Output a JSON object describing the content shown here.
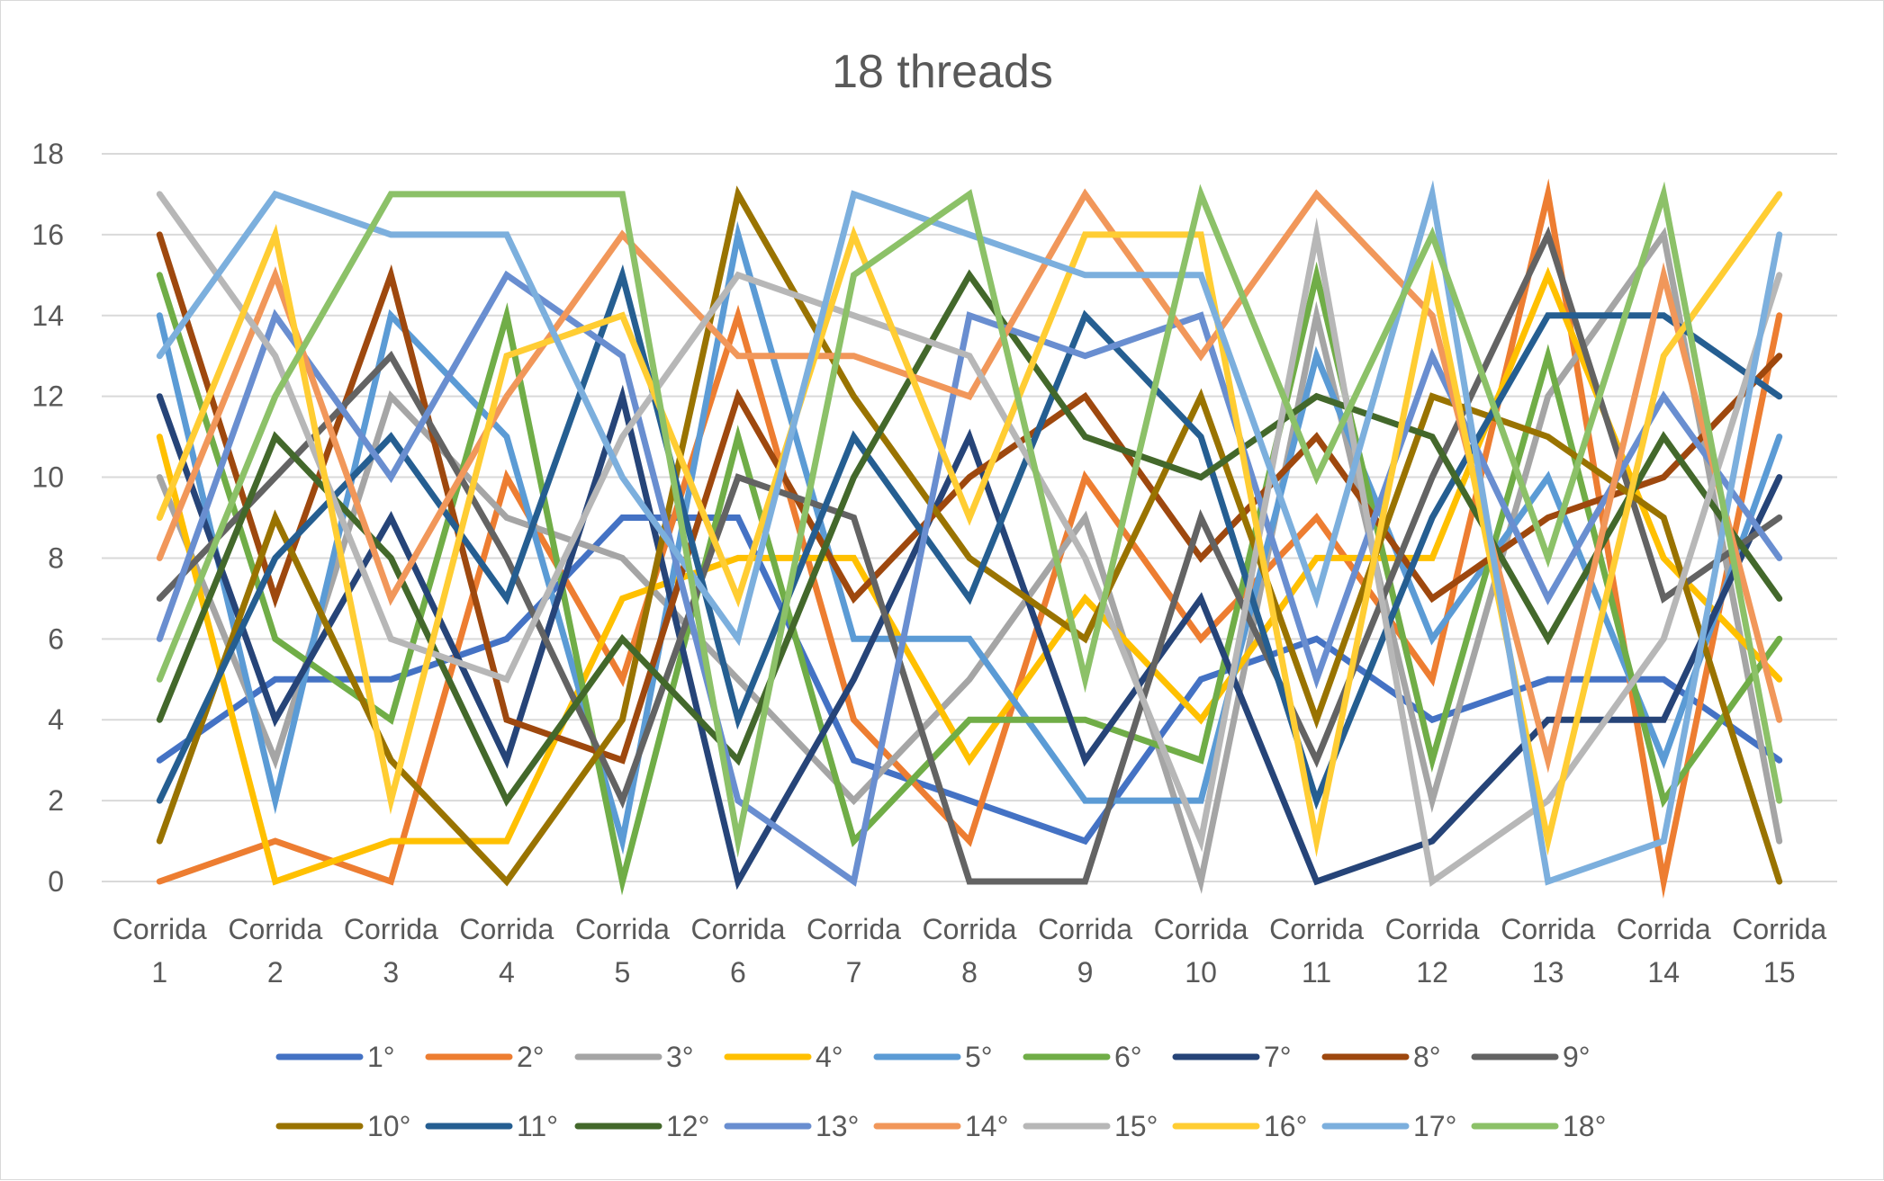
{
  "chart_data": {
    "type": "line",
    "title": "18 threads",
    "xlabel": "",
    "ylabel": "",
    "ylim": [
      0,
      18
    ],
    "yticks": [
      0,
      2,
      4,
      6,
      8,
      10,
      12,
      14,
      16,
      18
    ],
    "grid": true,
    "legend_position": "bottom",
    "categories": [
      "Corrida 1",
      "Corrida 2",
      "Corrida 3",
      "Corrida 4",
      "Corrida 5",
      "Corrida 6",
      "Corrida 7",
      "Corrida 8",
      "Corrida 9",
      "Corrida 10",
      "Corrida 11",
      "Corrida 12",
      "Corrida 13",
      "Corrida 14",
      "Corrida 15"
    ],
    "category_lines": [
      [
        "Corrida",
        "1"
      ],
      [
        "Corrida",
        "2"
      ],
      [
        "Corrida",
        "3"
      ],
      [
        "Corrida",
        "4"
      ],
      [
        "Corrida",
        "5"
      ],
      [
        "Corrida",
        "6"
      ],
      [
        "Corrida",
        "7"
      ],
      [
        "Corrida",
        "8"
      ],
      [
        "Corrida",
        "9"
      ],
      [
        "Corrida",
        "10"
      ],
      [
        "Corrida",
        "11"
      ],
      [
        "Corrida",
        "12"
      ],
      [
        "Corrida",
        "13"
      ],
      [
        "Corrida",
        "14"
      ],
      [
        "Corrida",
        "15"
      ]
    ],
    "series": [
      {
        "name": "1°",
        "color": "#4472C4",
        "values": [
          3,
          5,
          5,
          6,
          9,
          9,
          3,
          2,
          1,
          5,
          6,
          4,
          5,
          5,
          3
        ]
      },
      {
        "name": "2°",
        "color": "#ED7D31",
        "values": [
          0,
          1,
          0,
          10,
          5,
          14,
          4,
          1,
          10,
          6,
          9,
          5,
          17,
          0,
          14
        ]
      },
      {
        "name": "3°",
        "color": "#A5A5A5",
        "values": [
          10,
          3,
          12,
          9,
          8,
          5,
          2,
          5,
          9,
          0,
          14,
          2,
          12,
          16,
          1
        ]
      },
      {
        "name": "4°",
        "color": "#FFC000",
        "values": [
          11,
          0,
          1,
          1,
          7,
          8,
          8,
          3,
          7,
          4,
          8,
          8,
          15,
          8,
          5
        ]
      },
      {
        "name": "5°",
        "color": "#5B9BD5",
        "values": [
          14,
          2,
          14,
          11,
          1,
          16,
          6,
          6,
          2,
          2,
          13,
          6,
          10,
          3,
          11
        ]
      },
      {
        "name": "6°",
        "color": "#70AD47",
        "values": [
          15,
          6,
          4,
          14,
          0,
          11,
          1,
          4,
          4,
          3,
          15,
          3,
          13,
          2,
          6
        ]
      },
      {
        "name": "7°",
        "color": "#264478",
        "values": [
          12,
          4,
          9,
          3,
          12,
          0,
          5,
          11,
          3,
          7,
          0,
          1,
          4,
          4,
          10
        ]
      },
      {
        "name": "8°",
        "color": "#9E480E",
        "values": [
          16,
          7,
          15,
          4,
          3,
          12,
          7,
          10,
          12,
          8,
          11,
          7,
          9,
          10,
          13
        ]
      },
      {
        "name": "9°",
        "color": "#636363",
        "values": [
          7,
          10,
          13,
          8,
          2,
          10,
          9,
          0,
          0,
          9,
          3,
          10,
          16,
          7,
          9
        ]
      },
      {
        "name": "10°",
        "color": "#997300",
        "values": [
          1,
          9,
          3,
          0,
          4,
          17,
          12,
          8,
          6,
          12,
          4,
          12,
          11,
          9,
          0
        ]
      },
      {
        "name": "11°",
        "color": "#255E91",
        "values": [
          2,
          8,
          11,
          7,
          15,
          4,
          11,
          7,
          14,
          11,
          2,
          9,
          14,
          14,
          12
        ]
      },
      {
        "name": "12°",
        "color": "#43682B",
        "values": [
          4,
          11,
          8,
          2,
          6,
          3,
          10,
          15,
          11,
          10,
          12,
          11,
          6,
          11,
          7
        ]
      },
      {
        "name": "13°",
        "color": "#698ED0",
        "values": [
          6,
          14,
          10,
          15,
          13,
          2,
          0,
          14,
          13,
          14,
          5,
          13,
          7,
          12,
          8
        ]
      },
      {
        "name": "14°",
        "color": "#F1975A",
        "values": [
          8,
          15,
          7,
          12,
          16,
          13,
          13,
          12,
          17,
          13,
          17,
          14,
          3,
          15,
          4
        ]
      },
      {
        "name": "15°",
        "color": "#B7B7B7",
        "values": [
          17,
          13,
          6,
          5,
          11,
          15,
          14,
          13,
          8,
          1,
          16,
          0,
          2,
          6,
          15
        ]
      },
      {
        "name": "16°",
        "color": "#FFCD33",
        "values": [
          9,
          16,
          2,
          13,
          14,
          7,
          16,
          9,
          16,
          16,
          1,
          15,
          1,
          13,
          17
        ]
      },
      {
        "name": "17°",
        "color": "#7CAFDD",
        "values": [
          13,
          17,
          16,
          16,
          10,
          6,
          17,
          16,
          15,
          15,
          7,
          17,
          0,
          1,
          16
        ]
      },
      {
        "name": "18°",
        "color": "#8CC168",
        "values": [
          5,
          12,
          17,
          17,
          17,
          1,
          15,
          17,
          5,
          17,
          10,
          16,
          8,
          17,
          2
        ]
      }
    ]
  }
}
